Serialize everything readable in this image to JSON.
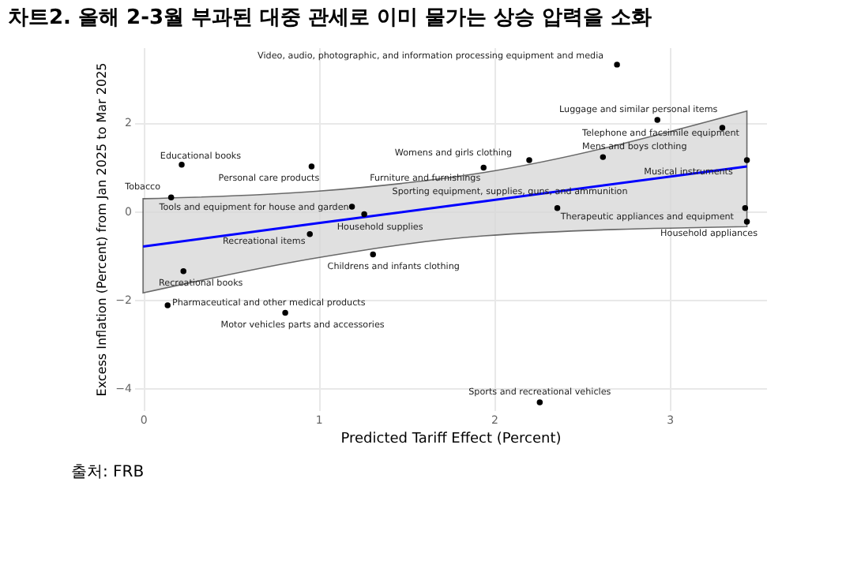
{
  "chart_data": {
    "type": "scatter",
    "title": "차트2. 올해 2-3월 부과된 대중 관세로 이미 물가는 상승 압력을 소화",
    "xlabel": "Predicted Tariff Effect (Percent)",
    "ylabel": "Excess Inflation (Percent) from Jan 2025 to Mar 2025",
    "series": [
      {
        "color": "#000000",
        "x": [
          2.7,
          2.93,
          3.3,
          2.62,
          2.2,
          1.94,
          3.44,
          0.22,
          0.96,
          0.16,
          1.19,
          1.26,
          2.36,
          3.43,
          3.44,
          0.95,
          1.31,
          0.23,
          0.14,
          0.81,
          2.26
        ],
        "values": [
          3.31,
          2.06,
          1.88,
          1.22,
          1.15,
          0.98,
          1.15,
          1.05,
          1.01,
          0.31,
          0.1,
          -0.07,
          0.07,
          0.07,
          -0.24,
          -0.52,
          -0.98,
          -1.36,
          -2.13,
          -2.3,
          -4.32
        ]
      },
      {
        "type": "line",
        "marker": "none",
        "color": "#0000ff",
        "x": [
          0.0,
          1.0,
          1.94,
          3.44
        ],
        "values": [
          -0.8,
          -0.27,
          0.22,
          1.01
        ],
        "lower": [
          -1.85,
          -1.05,
          -0.56,
          -0.35
        ],
        "upper": [
          0.28,
          0.45,
          0.87,
          2.26
        ]
      }
    ],
    "annotations": [
      {
        "text": "Video, audio, photographic, and information processing equipment and media",
        "x": 2.7,
        "y": 3.31
      },
      {
        "text": "Luggage and similar personal items",
        "x": 2.93,
        "y": 2.06
      },
      {
        "text": "Telephone and facsimile equipment",
        "x": 3.3,
        "y": 1.88
      },
      {
        "text": "Mens and boys clothing",
        "x": 2.62,
        "y": 1.22
      },
      {
        "text": "Womens and girls clothing",
        "x": 2.2,
        "y": 1.15
      },
      {
        "text": "Furniture and furnishings",
        "x": 1.94,
        "y": 0.98
      },
      {
        "text": "Musical instruments",
        "x": 3.44,
        "y": 1.15
      },
      {
        "text": "Educational books",
        "x": 0.22,
        "y": 1.05
      },
      {
        "text": "Personal care products",
        "x": 0.96,
        "y": 1.01
      },
      {
        "text": "Tobacco",
        "x": 0.16,
        "y": 0.31
      },
      {
        "text": "Tools and equipment for house and garden",
        "x": 1.19,
        "y": 0.1
      },
      {
        "text": "Household supplies",
        "x": 1.26,
        "y": -0.07
      },
      {
        "text": "Sporting equipment, supplies, guns, and ammunition",
        "x": 2.36,
        "y": 0.07
      },
      {
        "text": "Therapeutic appliances and equipment",
        "x": 3.43,
        "y": 0.07
      },
      {
        "text": "Household appliances",
        "x": 3.44,
        "y": -0.24
      },
      {
        "text": "Recreational items",
        "x": 0.95,
        "y": -0.52
      },
      {
        "text": "Childrens and infants clothing",
        "x": 1.31,
        "y": -0.98
      },
      {
        "text": "Recreational books",
        "x": 0.23,
        "y": -1.36
      },
      {
        "text": "Pharmaceutical and other medical products",
        "x": 0.14,
        "y": -2.13
      },
      {
        "text": "Motor vehicles parts and accessories",
        "x": 0.81,
        "y": -2.3
      },
      {
        "text": "Sports and recreational vehicles",
        "x": 2.26,
        "y": -4.32
      },
      "출처: FRB"
    ],
    "xlim": [
      -0.05,
      3.55
    ],
    "ylim": [
      -4.5,
      3.7
    ],
    "xticks": [
      0,
      1,
      2,
      3
    ],
    "yticks": [
      -4,
      -2,
      0,
      2
    ],
    "grid": true,
    "marker": "circle"
  }
}
